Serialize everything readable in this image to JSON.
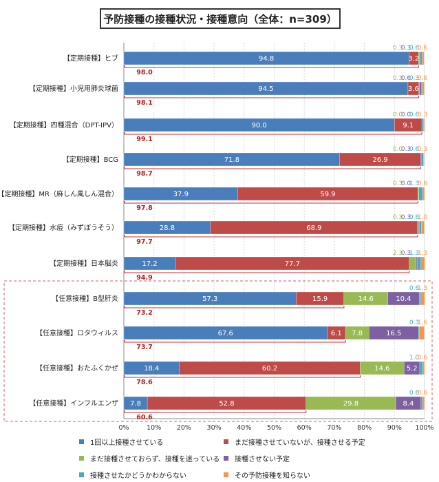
{
  "chart_data": {
    "type": "bar",
    "orientation": "horizontal",
    "stacked": true,
    "title": "予防接種の接種状況・接種意向（全体：n=309）",
    "xlim": [
      0,
      100
    ],
    "x_ticks": [
      "0%",
      "10%",
      "20%",
      "30%",
      "40%",
      "50%",
      "60%",
      "70%",
      "80%",
      "90%",
      "100%"
    ],
    "categories": [
      "【定期接種】ヒブ",
      "【定期接種】小児用肺炎球菌",
      "【定期接種】四種混合（DPT-IPV）",
      "【定期接種】BCG",
      "【定期接種】MR（麻しん風しん混合）",
      "【定期接種】水痘（みずぼうそう）",
      "【定期接種】日本脳炎",
      "【任意接種】B型肝炎",
      "【任意接種】ロタウィルス",
      "【任意接種】おたふくかぜ",
      "【任意接種】インフルエンザ"
    ],
    "series": [
      {
        "name": "1回以上接種させている",
        "color": "#4a7ebb",
        "values": [
          94.8,
          94.5,
          90.0,
          71.8,
          37.9,
          28.8,
          17.2,
          57.3,
          67.6,
          18.4,
          7.8
        ]
      },
      {
        "name": "まだ接種させていないが、接種させる予定",
        "color": "#be4b48",
        "values": [
          3.2,
          3.6,
          9.1,
          26.9,
          59.9,
          68.9,
          77.7,
          15.9,
          6.1,
          60.2,
          52.8
        ]
      },
      {
        "name": "まだ接種させておらず、接種を迷っている",
        "color": "#98b954",
        "values": [
          0.3,
          0.3,
          0.0,
          0.0,
          0.3,
          0.3,
          2.3,
          14.6,
          7.8,
          14.6,
          29.8
        ]
      },
      {
        "name": "接種させない予定",
        "color": "#7d60a0",
        "values": [
          0.3,
          0.6,
          0.0,
          0.3,
          0.0,
          0.3,
          0.3,
          10.4,
          16.5,
          5.2,
          8.4
        ]
      },
      {
        "name": "接種させたかどうかわからない",
        "color": "#46aac5",
        "values": [
          0.6,
          0.3,
          0.6,
          0.6,
          1.3,
          0.6,
          1.3,
          0.6,
          0.3,
          1.0,
          0.6
        ]
      },
      {
        "name": "その予防接種を知らない",
        "color": "#f79646",
        "values": [
          0.6,
          0.6,
          0.3,
          0.3,
          0.6,
          1.0,
          1.3,
          1.3,
          1.6,
          0.6,
          0.6
        ]
      }
    ],
    "top_labels": [
      [
        "0.3",
        "0.3",
        "0.6",
        "0.6"
      ],
      [
        "0.3",
        "0.6",
        "0.3",
        "0.6"
      ],
      [
        "0.0",
        "0.0",
        "0.6",
        "0.3"
      ],
      [
        "0.0",
        "0.3",
        "0.6",
        "0.3"
      ],
      [
        "0.3",
        "0.0",
        "1.3",
        "0.6"
      ],
      [
        "0.3",
        "0.3",
        "0.6",
        "1.0"
      ],
      [
        "2.3",
        "0.3",
        "1.3",
        "1.3"
      ],
      [
        "0.6",
        "1.3"
      ],
      [
        "0.3",
        "1.6"
      ],
      [
        "1.0",
        "0.6"
      ],
      [
        "0.6",
        "0.6"
      ]
    ],
    "top_label_series": [
      [
        2,
        3,
        4,
        5
      ],
      [
        2,
        3,
        4,
        5
      ],
      [
        2,
        3,
        4,
        5
      ],
      [
        2,
        3,
        4,
        5
      ],
      [
        2,
        3,
        4,
        5
      ],
      [
        2,
        3,
        4,
        5
      ],
      [
        2,
        3,
        4,
        5
      ],
      [
        4,
        5
      ],
      [
        4,
        5
      ],
      [
        4,
        5
      ],
      [
        4,
        5
      ]
    ],
    "bracket_sums": [
      "98.0",
      "98.1",
      "99.1",
      "98.7",
      "97.8",
      "97.7",
      "94.9",
      "73.2",
      "73.7",
      "78.6",
      "60.6"
    ],
    "bracket_values": [
      98.0,
      98.1,
      99.1,
      98.7,
      97.8,
      97.7,
      94.9,
      73.2,
      73.7,
      78.6,
      60.6
    ],
    "legend_position": "bottom",
    "grid": true
  }
}
